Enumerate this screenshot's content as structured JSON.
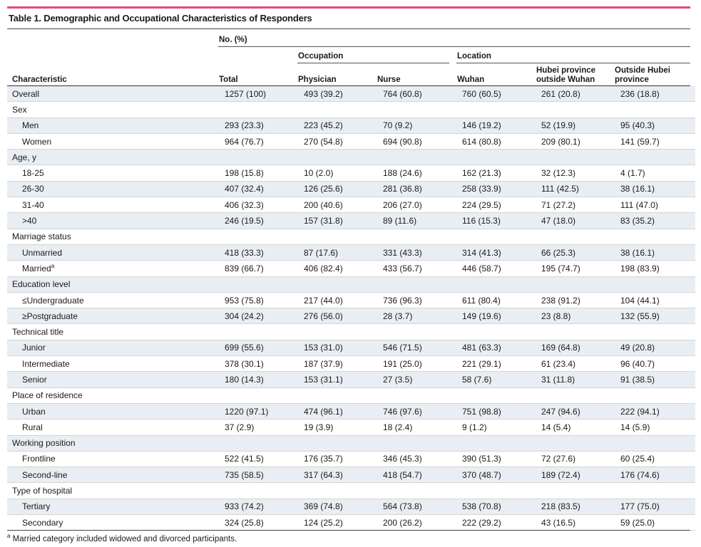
{
  "title": "Table 1. Demographic and Occupational Characteristics of Responders",
  "header": {
    "no_pct": "No. (%)",
    "occupation": "Occupation",
    "location": "Location",
    "characteristic": "Characteristic",
    "total": "Total",
    "physician": "Physician",
    "nurse": "Nurse",
    "wuhan": "Wuhan",
    "hubei_outside_wuhan_1": "Hubei province",
    "hubei_outside_wuhan_2": "outside Wuhan",
    "outside_hubei_1": "Outside Hubei",
    "outside_hubei_2": "province"
  },
  "rows": [
    {
      "label": "Overall",
      "indent": false,
      "cells": [
        "1257 (100)",
        "493 (39.2)",
        "764 (60.8)",
        "760 (60.5)",
        "261 (20.8)",
        "236 (18.8)"
      ]
    },
    {
      "label": "Sex",
      "indent": false,
      "cells": []
    },
    {
      "label": "Men",
      "indent": true,
      "cells": [
        "293 (23.3)",
        "223 (45.2)",
        "70 (9.2)",
        "146 (19.2)",
        "52 (19.9)",
        "95 (40.3)"
      ]
    },
    {
      "label": "Women",
      "indent": true,
      "cells": [
        "964 (76.7)",
        "270 (54.8)",
        "694 (90.8)",
        "614 (80.8)",
        "209 (80.1)",
        "141 (59.7)"
      ]
    },
    {
      "label": "Age, y",
      "indent": false,
      "cells": []
    },
    {
      "label": "18-25",
      "indent": true,
      "cells": [
        "198 (15.8)",
        "10 (2.0)",
        "188 (24.6)",
        "162 (21.3)",
        "32 (12.3)",
        "4 (1.7)"
      ]
    },
    {
      "label": "26-30",
      "indent": true,
      "cells": [
        "407 (32.4)",
        "126 (25.6)",
        "281 (36.8)",
        "258 (33.9)",
        "111 (42.5)",
        "38 (16.1)"
      ]
    },
    {
      "label": "31-40",
      "indent": true,
      "cells": [
        "406 (32.3)",
        "200 (40.6)",
        "206 (27.0)",
        "224 (29.5)",
        "71 (27.2)",
        "111 (47.0)"
      ]
    },
    {
      "label": ">40",
      "indent": true,
      "cells": [
        "246 (19.5)",
        "157 (31.8)",
        "89 (11.6)",
        "116 (15.3)",
        "47 (18.0)",
        "83 (35.2)"
      ]
    },
    {
      "label": "Marriage status",
      "indent": false,
      "cells": []
    },
    {
      "label": "Unmarried",
      "indent": true,
      "cells": [
        "418 (33.3)",
        "87 (17.6)",
        "331 (43.3)",
        "314 (41.3)",
        "66 (25.3)",
        "38 (16.1)"
      ]
    },
    {
      "label": "Married",
      "sup": "a",
      "indent": true,
      "cells": [
        "839 (66.7)",
        "406 (82.4)",
        "433 (56.7)",
        "446 (58.7)",
        "195 (74.7)",
        "198 (83.9)"
      ]
    },
    {
      "label": "Education level",
      "indent": false,
      "cells": []
    },
    {
      "label": "≤Undergraduate",
      "indent": true,
      "cells": [
        "953 (75.8)",
        "217 (44.0)",
        "736 (96.3)",
        "611 (80.4)",
        "238 (91.2)",
        "104 (44.1)"
      ]
    },
    {
      "label": "≥Postgraduate",
      "indent": true,
      "cells": [
        "304 (24.2)",
        "276 (56.0)",
        "28 (3.7)",
        "149 (19.6)",
        "23 (8.8)",
        "132 (55.9)"
      ]
    },
    {
      "label": "Technical title",
      "indent": false,
      "cells": []
    },
    {
      "label": "Junior",
      "indent": true,
      "cells": [
        "699 (55.6)",
        "153 (31.0)",
        "546 (71.5)",
        "481 (63.3)",
        "169 (64.8)",
        "49 (20.8)"
      ]
    },
    {
      "label": "Intermediate",
      "indent": true,
      "cells": [
        "378 (30.1)",
        "187 (37.9)",
        "191 (25.0)",
        "221 (29.1)",
        "61 (23.4)",
        "96 (40.7)"
      ]
    },
    {
      "label": "Senior",
      "indent": true,
      "cells": [
        "180 (14.3)",
        "153 (31.1)",
        "27 (3.5)",
        "58 (7.6)",
        "31 (11.8)",
        "91 (38.5)"
      ]
    },
    {
      "label": "Place of residence",
      "indent": false,
      "cells": []
    },
    {
      "label": "Urban",
      "indent": true,
      "cells": [
        "1220 (97.1)",
        "474 (96.1)",
        "746 (97.6)",
        "751 (98.8)",
        "247 (94.6)",
        "222 (94.1)"
      ]
    },
    {
      "label": "Rural",
      "indent": true,
      "cells": [
        "37 (2.9)",
        "19 (3.9)",
        "18 (2.4)",
        "9 (1.2)",
        "14 (5.4)",
        "14 (5.9)"
      ]
    },
    {
      "label": "Working position",
      "indent": false,
      "cells": []
    },
    {
      "label": "Frontline",
      "indent": true,
      "cells": [
        "522 (41.5)",
        "176 (35.7)",
        "346 (45.3)",
        "390 (51.3)",
        "72 (27.6)",
        "60 (25.4)"
      ]
    },
    {
      "label": "Second-line",
      "indent": true,
      "cells": [
        "735 (58.5)",
        "317 (64.3)",
        "418 (54.7)",
        "370 (48.7)",
        "189 (72.4)",
        "176 (74.6)"
      ]
    },
    {
      "label": "Type of hospital",
      "indent": false,
      "cells": []
    },
    {
      "label": "Tertiary",
      "indent": true,
      "cells": [
        "933 (74.2)",
        "369 (74.8)",
        "564 (73.8)",
        "538 (70.8)",
        "218 (83.5)",
        "177 (75.0)"
      ]
    },
    {
      "label": "Secondary",
      "indent": true,
      "cells": [
        "324 (25.8)",
        "124 (25.2)",
        "200 (26.2)",
        "222 (29.2)",
        "43 (16.5)",
        "59 (25.0)"
      ]
    }
  ],
  "footnote": {
    "marker": "a",
    "text": " Married category included widowed and divorced participants."
  },
  "colors": {
    "accent_rule": "#e8457a",
    "row_shade": "#e9eef4"
  }
}
